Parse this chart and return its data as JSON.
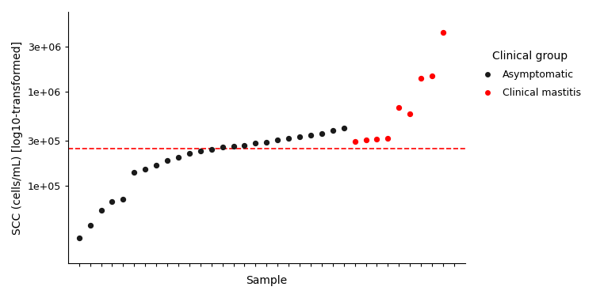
{
  "asymptomatic_x": [
    1,
    2,
    3,
    4,
    5,
    6,
    7,
    8,
    9,
    10,
    11,
    12,
    13,
    14,
    15,
    16,
    17,
    18,
    19,
    20,
    21,
    22,
    23,
    24,
    25
  ],
  "asymptomatic_y": [
    28000,
    38000,
    55000,
    68000,
    72000,
    140000,
    150000,
    165000,
    185000,
    200000,
    220000,
    235000,
    245000,
    258000,
    265000,
    270000,
    285000,
    290000,
    310000,
    320000,
    330000,
    345000,
    360000,
    385000,
    410000
  ],
  "clinical_x": [
    26,
    27,
    28,
    29,
    30,
    31,
    32,
    33,
    34
  ],
  "clinical_y": [
    298000,
    308000,
    315000,
    320000,
    680000,
    580000,
    1380000,
    1480000,
    4200000
  ],
  "threshold": 250000,
  "xlabel": "Sample",
  "ylabel": "SCC (cells/mL) [log10-transformed]",
  "legend_title": "Clinical group",
  "legend_labels": [
    "Asymptomatic",
    "Clinical mastitis"
  ],
  "asymptomatic_color": "#1a1a1a",
  "clinical_color": "#ff0000",
  "threshold_color": "#ff0000",
  "background_color": "#ffffff",
  "ylim_min": 15000,
  "ylim_max": 7000000,
  "xlim_min": 0,
  "xlim_max": 36,
  "yticks": [
    100000,
    300000,
    1000000,
    3000000
  ],
  "ytick_labels": [
    "1e+05",
    "3e+05",
    "1e+06",
    "3e+06"
  ],
  "n_xticks": 35,
  "marker_size": 18,
  "title_fontsize": 10,
  "axis_label_fontsize": 10,
  "tick_fontsize": 9,
  "legend_fontsize": 9,
  "legend_title_fontsize": 10
}
